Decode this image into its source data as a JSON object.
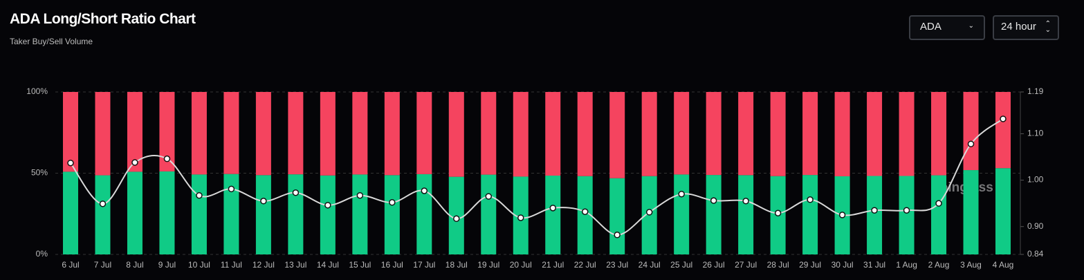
{
  "header": {
    "title": "ADA Long/Short Ratio Chart",
    "subtitle": "Taker Buy/Sell Volume",
    "symbol": "ADA",
    "interval": "24 hour"
  },
  "chart_data": {
    "type": "bar",
    "stacked": true,
    "watermark": "coinglass",
    "categories": [
      "6 Jul",
      "7 Jul",
      "8 Jul",
      "9 Jul",
      "10 Jul",
      "11 Jul",
      "12 Jul",
      "13 Jul",
      "14 Jul",
      "15 Jul",
      "16 Jul",
      "17 Jul",
      "18 Jul",
      "19 Jul",
      "20 Jul",
      "21 Jul",
      "22 Jul",
      "23 Jul",
      "24 Jul",
      "25 Jul",
      "26 Jul",
      "27 Jul",
      "28 Jul",
      "29 Jul",
      "30 Jul",
      "31 Jul",
      "1 Aug",
      "2 Aug",
      "3 Aug",
      "4 Aug"
    ],
    "series": [
      {
        "color": "#10cb86",
        "values": [
          50.9,
          48.7,
          50.9,
          51.1,
          49.2,
          49.5,
          48.8,
          49.3,
          48.6,
          49.2,
          48.8,
          49.4,
          47.8,
          49.1,
          47.9,
          48.5,
          48.2,
          46.9,
          48.2,
          49.2,
          48.9,
          48.8,
          48.2,
          48.9,
          48.1,
          48.3,
          48.3,
          48.7,
          51.9,
          53.1
        ]
      },
      {
        "color": "#f5445f",
        "values": [
          49.1,
          51.3,
          49.1,
          48.9,
          50.8,
          50.5,
          51.2,
          50.7,
          51.4,
          50.8,
          51.2,
          50.6,
          52.2,
          50.9,
          52.1,
          51.5,
          51.8,
          53.1,
          51.8,
          50.8,
          51.1,
          51.2,
          51.8,
          51.1,
          51.9,
          51.7,
          51.7,
          51.3,
          48.1,
          46.9
        ]
      },
      {
        "type": "line",
        "axis": "y2",
        "color": "#d9d9d9",
        "values": [
          1.037,
          0.949,
          1.038,
          1.046,
          0.967,
          0.981,
          0.955,
          0.973,
          0.946,
          0.967,
          0.952,
          0.977,
          0.917,
          0.965,
          0.919,
          0.94,
          0.932,
          0.882,
          0.931,
          0.97,
          0.956,
          0.955,
          0.929,
          0.958,
          0.925,
          0.935,
          0.935,
          0.95,
          1.078,
          1.132
        ]
      }
    ],
    "ylim": [
      0,
      100
    ],
    "yticks": [
      {
        "value": 0,
        "label": "0%"
      },
      {
        "value": 50,
        "label": "50%"
      },
      {
        "value": 100,
        "label": "100%"
      }
    ],
    "y2lim": [
      0.84,
      1.19
    ],
    "y2ticks": [
      0.84,
      {
        "value": 0.9,
        "label": "0.90"
      },
      {
        "value": 1,
        "label": "1.00"
      },
      {
        "value": 1.1,
        "label": "1.10"
      },
      1.19
    ],
    "grid": true
  }
}
